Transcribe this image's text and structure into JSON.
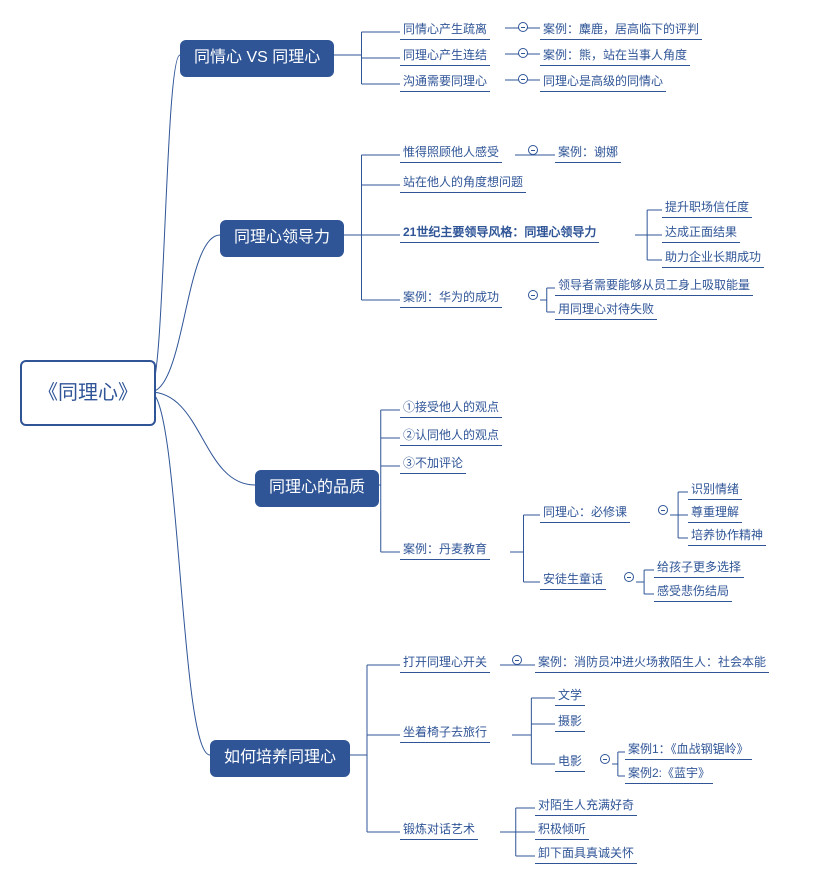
{
  "colors": {
    "primary": "#2f5597",
    "line": "#2f5597",
    "boxBg": "#2f5597",
    "boxText": "#ffffff",
    "rootBg": "#ffffff",
    "rootText": "#2f5597",
    "leafText": "#2f5597",
    "leafLine": "#2f5597"
  },
  "root": {
    "label": "《同理心》"
  },
  "branches": [
    {
      "label": "同情心 VS 同理心"
    },
    {
      "label": "同理心领导力"
    },
    {
      "label": "同理心的品质"
    },
    {
      "label": "如何培养同理心"
    }
  ],
  "leaves": {
    "b0c0": "同情心产生疏离",
    "b0c0r": "案例：麋鹿，居高临下的评判",
    "b0c1": "同理心产生连结",
    "b0c1r": "案例：熊，站在当事人角度",
    "b0c2": "沟通需要同理心",
    "b0c2r": "同理心是高级的同情心",
    "b1c0": "惟得照顾他人感受",
    "b1c0r": "案例：谢娜",
    "b1c1": "站在他人的角度想问题",
    "b1c2": "21世纪主要领导风格：同理心领导力",
    "b1c2r0": "提升职场信任度",
    "b1c2r1": "达成正面结果",
    "b1c2r2": "助力企业长期成功",
    "b1c3": "案例：华为的成功",
    "b1c3r0": "领导者需要能够从员工身上吸取能量",
    "b1c3r1": "用同理心对待失败",
    "b2c0": "①接受他人的观点",
    "b2c1": "②认同他人的观点",
    "b2c2": "③不加评论",
    "b2c3": "案例：丹麦教育",
    "b2c3a": "同理心：必修课",
    "b2c3a0": "识别情绪",
    "b2c3a1": "尊重理解",
    "b2c3a2": "培养协作精神",
    "b2c3b": "安徒生童话",
    "b2c3b0": "给孩子更多选择",
    "b2c3b1": "感受悲伤结局",
    "b3c0": "打开同理心开关",
    "b3c0r": "案例：消防员冲进火场救陌生人：社会本能",
    "b3c1": "坐着椅子去旅行",
    "b3c1r0": "文学",
    "b3c1r1": "摄影",
    "b3c1r2": "电影",
    "b3c1r2a": "案例1：《血战钢锯岭》",
    "b3c1r2b": "案例2:《蓝宇》",
    "b3c2": "锻炼对话艺术",
    "b3c2r0": "对陌生人充满好奇",
    "b3c2r1": "积极倾听",
    "b3c2r2": "卸下面具真诚关怀"
  }
}
